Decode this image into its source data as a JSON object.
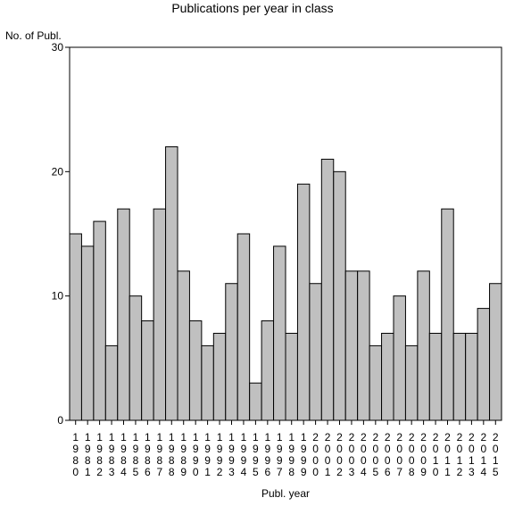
{
  "chart_data": {
    "type": "bar",
    "title": "Publications per year in class",
    "ylabel": "No. of Publ.",
    "xlabel": "Publ. year",
    "ylim": [
      0,
      30
    ],
    "yticks": [
      0,
      10,
      20,
      30
    ],
    "grid": false,
    "bar_color": "#c0c0c0",
    "edge_color": "#000000",
    "categories": [
      "1980",
      "1981",
      "1982",
      "1983",
      "1984",
      "1985",
      "1986",
      "1987",
      "1988",
      "1989",
      "1990",
      "1991",
      "1992",
      "1993",
      "1994",
      "1995",
      "1996",
      "1997",
      "1998",
      "1999",
      "2000",
      "2001",
      "2002",
      "2003",
      "2004",
      "2005",
      "2006",
      "2007",
      "2008",
      "2009",
      "2010",
      "2011",
      "2012",
      "2013",
      "2014",
      "2015"
    ],
    "values": [
      15,
      14,
      16,
      6,
      17,
      10,
      8,
      17,
      22,
      12,
      8,
      6,
      7,
      11,
      15,
      3,
      8,
      14,
      7,
      19,
      11,
      21,
      20,
      12,
      12,
      6,
      7,
      10,
      6,
      12,
      7,
      17,
      7,
      7,
      9,
      11
    ]
  }
}
